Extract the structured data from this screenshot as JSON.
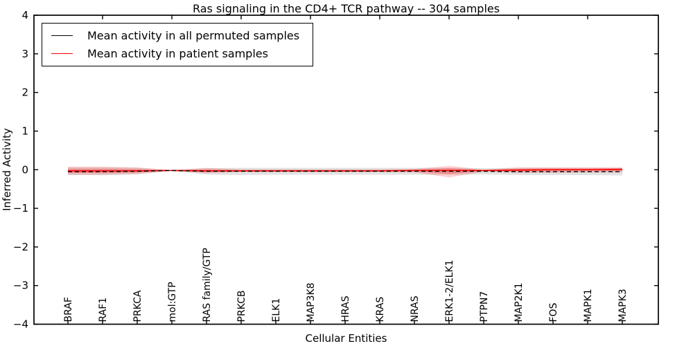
{
  "chart_data": {
    "type": "line",
    "title": "Ras signaling in the CD4+ TCR pathway -- 304 samples",
    "xlabel": "Cellular Entities",
    "ylabel": "Inferred Activity",
    "categories": [
      "BRAF",
      "RAF1",
      "PRKCA",
      "mol:GTP",
      "RAS family/GTP",
      "PRKCB",
      "ELK1",
      "MAP3K8",
      "HRAS",
      "KRAS",
      "NRAS",
      "ERK1-2/ELK1",
      "PTPN7",
      "MAP2K1",
      "FOS",
      "MAPK1",
      "MAPK3"
    ],
    "ylim": [
      -4,
      4
    ],
    "ytick_labels": [
      "4",
      "3",
      "2",
      "1",
      "0",
      "−1",
      "−2",
      "−3",
      "−4"
    ],
    "ytick_values": [
      4,
      3,
      2,
      1,
      0,
      -1,
      -2,
      -3,
      -4
    ],
    "grid": false,
    "legend_position": "upper left",
    "series": [
      {
        "name": "Mean activity in all permuted samples",
        "color": "#000000",
        "style": "dashed",
        "band_color": "#bfbfbf",
        "values": [
          -0.05,
          -0.05,
          -0.04,
          -0.02,
          -0.04,
          -0.04,
          -0.04,
          -0.04,
          -0.04,
          -0.04,
          -0.04,
          -0.04,
          -0.04,
          -0.05,
          -0.05,
          -0.05,
          -0.05
        ],
        "band_upper": [
          0.06,
          0.06,
          0.05,
          -0.01,
          0.04,
          0.05,
          0.05,
          0.05,
          0.05,
          0.05,
          0.05,
          0.05,
          0.04,
          0.05,
          0.05,
          0.05,
          0.05
        ],
        "band_lower": [
          -0.14,
          -0.14,
          -0.12,
          -0.03,
          -0.13,
          -0.14,
          -0.13,
          -0.13,
          -0.13,
          -0.13,
          -0.13,
          -0.13,
          -0.12,
          -0.14,
          -0.14,
          -0.14,
          -0.15
        ]
      },
      {
        "name": "Mean activity in patient samples",
        "color": "#ff0000",
        "style": "solid",
        "band_color": "#ff0000",
        "values": [
          -0.03,
          -0.03,
          -0.03,
          -0.02,
          -0.03,
          -0.03,
          -0.03,
          -0.03,
          -0.03,
          -0.03,
          -0.02,
          -0.02,
          -0.02,
          -0.01,
          0.0,
          0.0,
          0.01
        ],
        "band_upper": [
          0.08,
          0.08,
          0.06,
          -0.01,
          0.05,
          0.01,
          0.01,
          0.01,
          0.01,
          0.01,
          0.02,
          0.1,
          0.0,
          0.06,
          0.06,
          0.06,
          0.06
        ],
        "band_lower": [
          -0.13,
          -0.13,
          -0.11,
          -0.03,
          -0.09,
          -0.06,
          -0.06,
          -0.06,
          -0.06,
          -0.06,
          -0.07,
          -0.2,
          -0.05,
          -0.08,
          -0.08,
          -0.07,
          -0.07
        ]
      }
    ]
  }
}
